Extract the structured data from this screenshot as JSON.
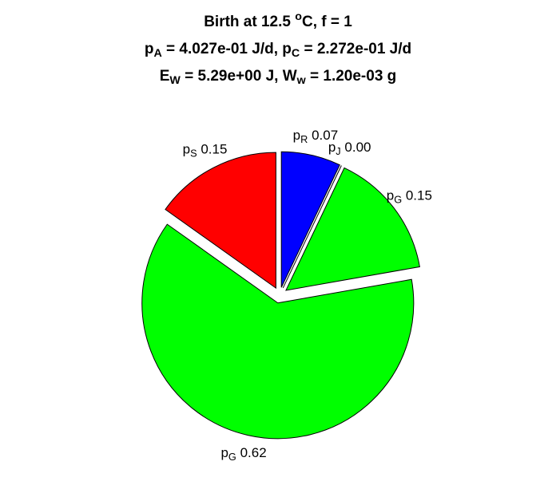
{
  "chart_data": {
    "type": "pie",
    "title": [
      [
        "Birth at 12.5 ",
        {
          "sup": "o"
        },
        "C, f = 1"
      ],
      [
        "p",
        {
          "sub": "A"
        },
        " = 4.027e-01 J/d, p",
        {
          "sub": "C"
        },
        " = 2.272e-01 J/d"
      ],
      [
        "E",
        {
          "sub": "W"
        },
        " = 5.29e+00 J, W",
        {
          "sub": "w"
        },
        " = 1.20e-03 g"
      ]
    ],
    "labels": [
      [
        "p",
        {
          "sub": "R"
        },
        " "
      ],
      [
        "p",
        {
          "sub": "J"
        },
        " "
      ],
      [
        "p",
        {
          "sub": "G"
        },
        " "
      ],
      [
        "p",
        {
          "sub": "G"
        },
        " "
      ],
      [
        "p",
        {
          "sub": "S"
        },
        " "
      ]
    ],
    "values": [
      0.07,
      0,
      0.15,
      0.62,
      0.15
    ],
    "value_labels": [
      "0.07",
      "0.00",
      "0.15",
      "0.62",
      "0.15"
    ],
    "colors": [
      "#0000ff",
      "#ff00ff",
      "#00ff00",
      "#00ff00",
      "#ff0000"
    ]
  }
}
